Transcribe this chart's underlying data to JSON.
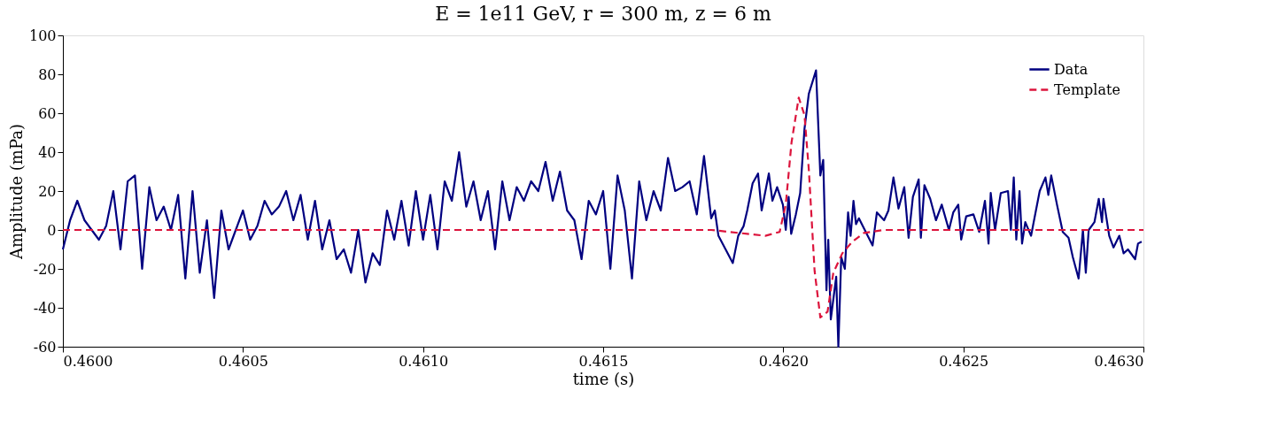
{
  "chart_data": {
    "type": "line",
    "title": "E = 1e11 GeV, r = 300 m, z = 6 m",
    "xlabel": "time (s)",
    "ylabel": "Amplitude (mPa)",
    "xlim": [
      0.46,
      0.463
    ],
    "ylim": [
      -60,
      100
    ],
    "xticks": [
      {
        "value": 0.46,
        "label": "0.4600"
      },
      {
        "value": 0.4605,
        "label": "0.4605"
      },
      {
        "value": 0.461,
        "label": "0.4610"
      },
      {
        "value": 0.4615,
        "label": "0.4615"
      },
      {
        "value": 0.462,
        "label": "0.4620"
      },
      {
        "value": 0.4625,
        "label": "0.4625"
      },
      {
        "value": 0.463,
        "label": "0.4630"
      }
    ],
    "yticks": [
      -60,
      -40,
      -20,
      0,
      20,
      40,
      60,
      80,
      100
    ],
    "grid": false,
    "legend": "top right",
    "series": [
      {
        "name": "Data",
        "color": "#000080",
        "line_style": "solid",
        "x": [
          0.46,
          0.46002,
          0.46004,
          0.46006,
          0.46008,
          0.4601,
          0.46012,
          0.46014,
          0.46016,
          0.46018,
          0.4602,
          0.46022,
          0.46024,
          0.46026,
          0.46028,
          0.4603,
          0.46032,
          0.46034,
          0.46036,
          0.46038,
          0.4604,
          0.46042,
          0.46044,
          0.46046,
          0.46048,
          0.4605,
          0.46052,
          0.46054,
          0.46056,
          0.46058,
          0.4606,
          0.46062,
          0.46064,
          0.46066,
          0.46068,
          0.4607,
          0.46072,
          0.46074,
          0.46076,
          0.46078,
          0.4608,
          0.46082,
          0.46084,
          0.46086,
          0.46088,
          0.4609,
          0.46092,
          0.46094,
          0.46096,
          0.46098,
          0.461,
          0.46102,
          0.46104,
          0.46106,
          0.46108,
          0.4611,
          0.46112,
          0.46114,
          0.46116,
          0.46118,
          0.4612,
          0.46122,
          0.46124,
          0.46126,
          0.46128,
          0.4613,
          0.46132,
          0.46134,
          0.46136,
          0.46138,
          0.4614,
          0.46142,
          0.46144,
          0.46146,
          0.46148,
          0.4615,
          0.46152,
          0.46154,
          0.46156,
          0.46158,
          0.4616,
          0.46162,
          0.46164,
          0.46166,
          0.46168,
          0.4617,
          0.46172,
          0.46174,
          0.46176,
          0.46178,
          0.4618,
          0.46181,
          0.46182,
          0.46184,
          0.46186,
          0.461875,
          0.46189,
          0.4619,
          0.461915,
          0.46193,
          0.46194,
          0.46196,
          0.46197,
          0.461983,
          0.461999,
          0.462007,
          0.462015,
          0.462022,
          0.462035,
          0.462047,
          0.462059,
          0.462071,
          0.462091,
          0.462103,
          0.462111,
          0.46212,
          0.462125,
          0.462132,
          0.462147,
          0.462153,
          0.462161,
          0.462171,
          0.46218,
          0.462187,
          0.462195,
          0.462202,
          0.46221,
          0.462248,
          0.46226,
          0.46228,
          0.462292,
          0.462306,
          0.46232,
          0.462336,
          0.462348,
          0.46236,
          0.462376,
          0.462382,
          0.462392,
          0.462408,
          0.462424,
          0.46244,
          0.46246,
          0.462472,
          0.462486,
          0.462494,
          0.462508,
          0.462528,
          0.462544,
          0.46256,
          0.46257,
          0.462576,
          0.462588,
          0.462604,
          0.462624,
          0.462632,
          0.46264,
          0.462647,
          0.462656,
          0.462663,
          0.462672,
          0.462688,
          0.462712,
          0.462728,
          0.462736,
          0.462744,
          0.46276,
          0.462776,
          0.462792,
          0.462804,
          0.46282,
          0.462832,
          0.46284,
          0.462848,
          0.462864,
          0.462876,
          0.462885,
          0.462889,
          0.462905,
          0.462917,
          0.462933,
          0.462945,
          0.462957,
          0.462977,
          0.462985,
          0.462995
        ],
        "values": [
          -10,
          5,
          15,
          5,
          0,
          -5,
          2,
          20,
          -10,
          25,
          28,
          -20,
          22,
          5,
          12,
          0,
          18,
          -25,
          20,
          -22,
          5,
          -35,
          10,
          -10,
          0,
          10,
          -5,
          2,
          15,
          8,
          12,
          20,
          5,
          18,
          -5,
          15,
          -10,
          5,
          -15,
          -10,
          -22,
          0,
          -27,
          -12,
          -18,
          10,
          -5,
          15,
          -8,
          20,
          -5,
          18,
          -10,
          25,
          15,
          40,
          12,
          25,
          5,
          20,
          -10,
          25,
          5,
          22,
          15,
          25,
          20,
          35,
          15,
          30,
          10,
          5,
          -15,
          15,
          8,
          20,
          -20,
          28,
          10,
          -25,
          25,
          5,
          20,
          10,
          37,
          20,
          22,
          25,
          8,
          38,
          6,
          10,
          -3,
          -10,
          -17,
          -3,
          2,
          10,
          24,
          29,
          10,
          29,
          15,
          22,
          13,
          0,
          17,
          -2,
          8,
          19,
          52,
          70,
          82,
          28,
          36,
          -31,
          -5,
          -46,
          -24,
          -60,
          -14,
          -20,
          9,
          -3,
          15,
          3,
          6,
          -8,
          9,
          5,
          10,
          27,
          11,
          22,
          -4,
          17,
          26,
          -4,
          23,
          16,
          5,
          13,
          0,
          9,
          13,
          -5,
          7,
          8,
          -1,
          15,
          -7,
          19,
          0,
          19,
          20,
          0,
          27,
          -5,
          20,
          -7,
          4,
          -3,
          20,
          27,
          18,
          28,
          13,
          -1,
          -4,
          -14,
          -25,
          0,
          -22,
          0,
          4,
          16,
          4,
          16,
          -3,
          -9,
          -3,
          -12,
          -10,
          -15,
          -7,
          -6
        ]
      },
      {
        "name": "Template",
        "color": "#dc143c",
        "line_style": "dashed",
        "x": [
          0.46,
          0.4618,
          0.4619,
          0.46195,
          0.46199,
          0.462007,
          0.462023,
          0.462043,
          0.462059,
          0.462071,
          0.462087,
          0.462103,
          0.462123,
          0.462139,
          0.462164,
          0.462192,
          0.462224,
          0.462279,
          0.463
        ],
        "values": [
          0,
          0,
          -2,
          -3,
          -1,
          13,
          45,
          68,
          59,
          31,
          -21,
          -45,
          -42,
          -22,
          -12,
          -6,
          -1.5,
          0,
          0
        ]
      }
    ]
  }
}
